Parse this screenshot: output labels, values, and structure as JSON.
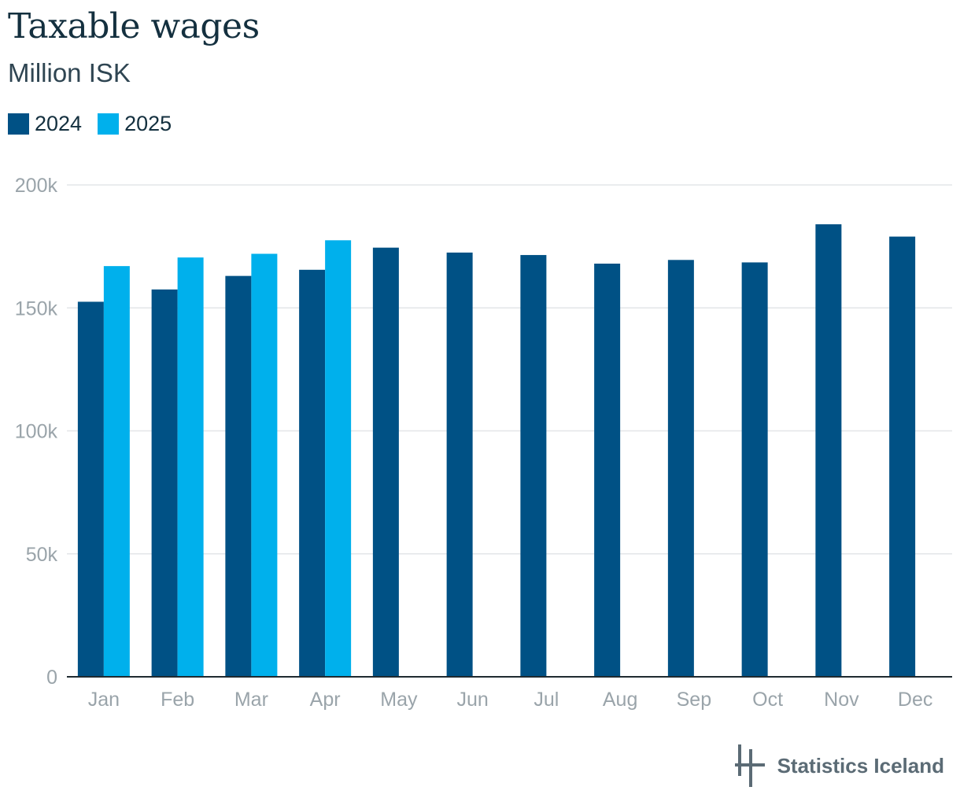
{
  "title": "Taxable wages",
  "subtitle": "Million ISK",
  "legend": [
    {
      "label": "2024",
      "color": "#005185"
    },
    {
      "label": "2025",
      "color": "#00b0ec"
    }
  ],
  "logo": {
    "text": "Statistics Iceland",
    "icon": "statistics-iceland-logo-icon"
  },
  "chart_data": {
    "type": "bar",
    "title": "Taxable wages",
    "subtitle": "Million ISK",
    "categories": [
      "Jan",
      "Feb",
      "Mar",
      "Apr",
      "May",
      "Jun",
      "Jul",
      "Aug",
      "Sep",
      "Oct",
      "Nov",
      "Dec"
    ],
    "series": [
      {
        "name": "2024",
        "color": "#005185",
        "values": [
          152500,
          157500,
          163000,
          165500,
          174500,
          172500,
          171500,
          168000,
          169500,
          168500,
          184000,
          179000
        ]
      },
      {
        "name": "2025",
        "color": "#00b0ec",
        "values": [
          167000,
          170500,
          172000,
          177500,
          null,
          null,
          null,
          null,
          null,
          null,
          null,
          null
        ]
      }
    ],
    "yticks": [
      "0",
      "50k",
      "100k",
      "150k",
      "200k"
    ],
    "ytick_values": [
      0,
      50000,
      100000,
      150000,
      200000
    ],
    "ylim": [
      0,
      200000
    ],
    "grid": true,
    "legend_position": "top-left"
  }
}
